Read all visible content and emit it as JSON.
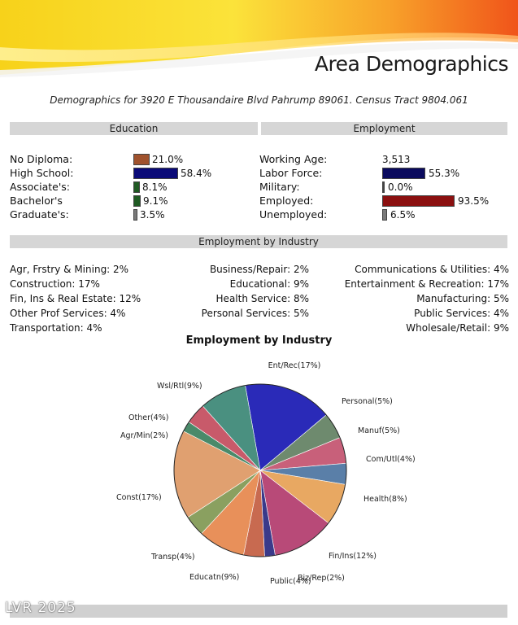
{
  "header": {
    "title": "Area Demographics",
    "subtitle": "Demographics for 3920 E Thousandaire Blvd Pahrump 89061. Census Tract 9804.061"
  },
  "education": {
    "heading": "Education",
    "items": [
      {
        "label": "No Diploma:",
        "value": "21.0%",
        "pct": 21.0,
        "color": "#a0522d"
      },
      {
        "label": "High School:",
        "value": "58.4%",
        "pct": 58.4,
        "color": "#0a0a78"
      },
      {
        "label": "Associate's:",
        "value": "8.1%",
        "pct": 8.1,
        "color": "#1f5a23"
      },
      {
        "label": "Bachelor's",
        "value": "9.1%",
        "pct": 9.1,
        "color": "#1f5a23"
      },
      {
        "label": "Graduate's:",
        "value": "3.5%",
        "pct": 3.5,
        "color": "#7a7a7a"
      }
    ]
  },
  "employment": {
    "heading": "Employment",
    "items": [
      {
        "label": "Working Age:",
        "value": "3,513",
        "pct": 0,
        "color": "#ffffff"
      },
      {
        "label": "Labor Force:",
        "value": "55.3%",
        "pct": 55.3,
        "color": "#0a0a5e"
      },
      {
        "label": "Military:",
        "value": "0.0%",
        "pct": 0,
        "color": "#444444"
      },
      {
        "label": "Employed:",
        "value": "93.5%",
        "pct": 93.5,
        "color": "#8b1010"
      },
      {
        "label": "Unemployed:",
        "value": "6.5%",
        "pct": 6.5,
        "color": "#7a7a7a"
      }
    ]
  },
  "industry": {
    "heading": "Employment by Industry",
    "left": [
      "Agr, Frstry & Mining: 2%",
      "Construction: 17%",
      "Fin, Ins & Real Estate: 12%",
      "Other Prof Services: 4%",
      "Transportation: 4%"
    ],
    "center": [
      "Business/Repair: 2%",
      "Educational: 9%",
      "Health Service: 8%",
      "Personal Services: 5%"
    ],
    "right": [
      "Communications & Utilities: 4%",
      "Entertainment & Recreation: 17%",
      "Manufacturing: 5%",
      "Public Services: 4%",
      "Wholesale/Retail: 9%"
    ]
  },
  "chart_data": {
    "type": "pie",
    "title": "Employment by Industry",
    "slices": [
      {
        "label": "Ent/Rec(17%)",
        "value": 17,
        "color": "#2a2ab8"
      },
      {
        "label": "Personal(5%)",
        "value": 5,
        "color": "#6e8a6e"
      },
      {
        "label": "Manuf(5%)",
        "value": 5,
        "color": "#c8607a"
      },
      {
        "label": "Com/Utl(4%)",
        "value": 4,
        "color": "#5a7fa8"
      },
      {
        "label": "Health(8%)",
        "value": 8,
        "color": "#e8a862"
      },
      {
        "label": "Fin/Ins(12%)",
        "value": 12,
        "color": "#b84a78"
      },
      {
        "label": "Biz/Rep(2%)",
        "value": 2,
        "color": "#3a3a8a"
      },
      {
        "label": "Public(4%)",
        "value": 4,
        "color": "#c86a50"
      },
      {
        "label": "Educatn(9%)",
        "value": 9,
        "color": "#e8905a"
      },
      {
        "label": "Transp(4%)",
        "value": 4,
        "color": "#8aa060"
      },
      {
        "label": "Const(17%)",
        "value": 17,
        "color": "#e0a070"
      },
      {
        "label": "Agr/Min(2%)",
        "value": 2,
        "color": "#4a8a6a"
      },
      {
        "label": "Other(4%)",
        "value": 4,
        "color": "#c85a6a"
      },
      {
        "label": "Wsl/Rtl(9%)",
        "value": 9,
        "color": "#4a9080"
      }
    ]
  },
  "footer": {
    "watermark": "LVR 2025"
  }
}
